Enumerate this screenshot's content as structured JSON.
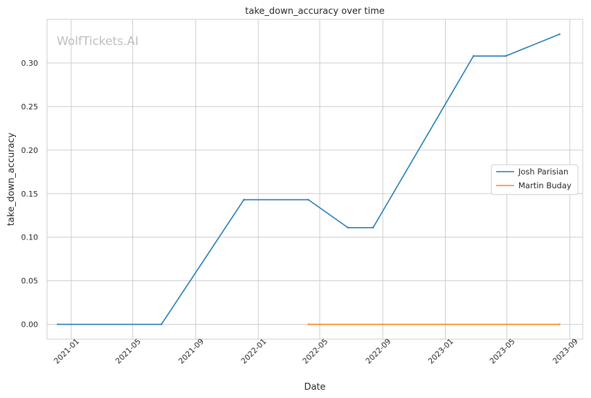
{
  "watermark": "WolfTickets.AI",
  "chart_data": {
    "type": "line",
    "title": "take_down_accuracy over time",
    "xlabel": "Date",
    "ylabel": "take_down_accuracy",
    "x_ticks": [
      "2021-01",
      "2021-05",
      "2021-09",
      "2022-01",
      "2022-05",
      "2022-09",
      "2023-01",
      "2023-05",
      "2023-09"
    ],
    "y_ticks": [
      "0.00",
      "0.05",
      "0.10",
      "0.15",
      "0.20",
      "0.25",
      "0.30"
    ],
    "xlim": [
      "2020-11-15",
      "2023-09-26"
    ],
    "ylim": [
      -0.017,
      0.35
    ],
    "grid": true,
    "legend_position": "center-right",
    "series": [
      {
        "name": "Josh Parisian",
        "color": "#1f77b4",
        "points": [
          {
            "x": "2020-12-06",
            "y": 0.0
          },
          {
            "x": "2021-06-26",
            "y": 0.0
          },
          {
            "x": "2021-12-04",
            "y": 0.143
          },
          {
            "x": "2022-04-09",
            "y": 0.143
          },
          {
            "x": "2022-06-25",
            "y": 0.111
          },
          {
            "x": "2022-08-13",
            "y": 0.111
          },
          {
            "x": "2023-02-25",
            "y": 0.308
          },
          {
            "x": "2023-04-29",
            "y": 0.308
          },
          {
            "x": "2023-08-12",
            "y": 0.333
          }
        ]
      },
      {
        "name": "Martin Buday",
        "color": "#ff7f0e",
        "points": [
          {
            "x": "2022-04-09",
            "y": 0.0
          },
          {
            "x": "2023-08-12",
            "y": 0.0
          }
        ]
      }
    ]
  }
}
